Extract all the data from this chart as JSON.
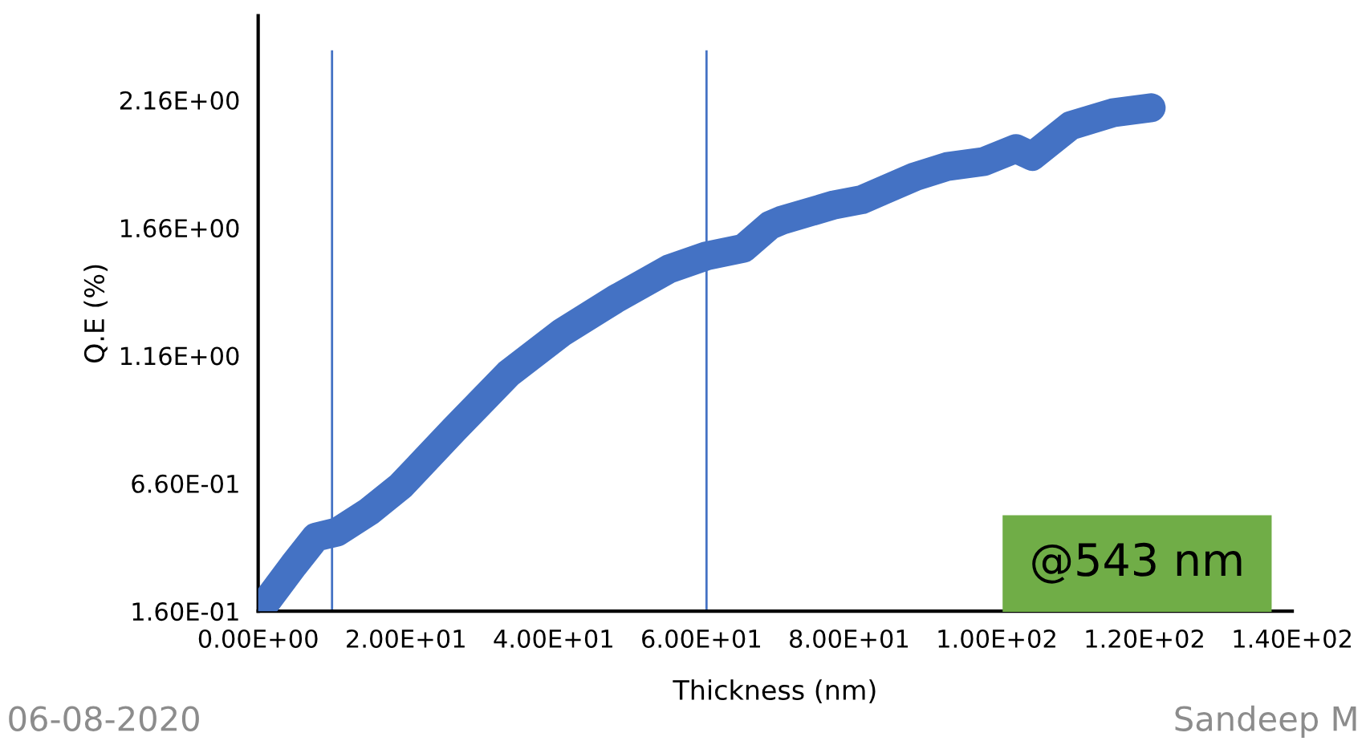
{
  "chart_data": {
    "type": "line",
    "xlabel": "Thickness (nm)",
    "ylabel": "Q.E (%)",
    "x": [
      0.4,
      4.8,
      7.8,
      10.7,
      15,
      19.3,
      26.5,
      33.9,
      41.1,
      48.3,
      55.7,
      60.7,
      65.7,
      69.3,
      70.9,
      78,
      81.7,
      88.9,
      93.3,
      98.3,
      102.6,
      104.8,
      110,
      115.7,
      120.9
    ],
    "series": [
      {
        "color": "#4472c4",
        "values": [
          0.17,
          0.34,
          0.45,
          0.47,
          0.55,
          0.65,
          0.87,
          1.09,
          1.25,
          1.38,
          1.5,
          1.55,
          1.58,
          1.67,
          1.69,
          1.75,
          1.77,
          1.86,
          1.9,
          1.92,
          1.97,
          1.94,
          2.06,
          2.11,
          2.13
        ]
      }
    ],
    "xlim": [
      0,
      140
    ],
    "ylim": [
      0.16,
      2.49
    ],
    "xticks": [
      {
        "value": 0,
        "label": "0.00E+00"
      },
      {
        "value": 20,
        "label": "2.00E+01"
      },
      {
        "value": 40,
        "label": "4.00E+01"
      },
      {
        "value": 60,
        "label": "6.00E+01"
      },
      {
        "value": 80,
        "label": "8.00E+01"
      },
      {
        "value": 100,
        "label": "1.00E+02"
      },
      {
        "value": 120,
        "label": "1.20E+02"
      },
      {
        "value": 140,
        "label": "1.40E+02"
      }
    ],
    "yticks": [
      {
        "value": 0.16,
        "label": "1.60E-01"
      },
      {
        "value": 0.66,
        "label": "6.60E-01"
      },
      {
        "value": 1.16,
        "label": "1.16E+00"
      },
      {
        "value": 1.66,
        "label": "1.66E+00"
      },
      {
        "value": 2.16,
        "label": "2.16E+00"
      }
    ],
    "ref_lines": [
      {
        "axis": "x",
        "value": 10,
        "color": "#4472c4"
      },
      {
        "axis": "x",
        "value": 60.7,
        "color": "#4472c4"
      }
    ],
    "annotations": [
      "@543 nm",
      "06-08-2020",
      "Sandeep M"
    ],
    "grid": false
  }
}
